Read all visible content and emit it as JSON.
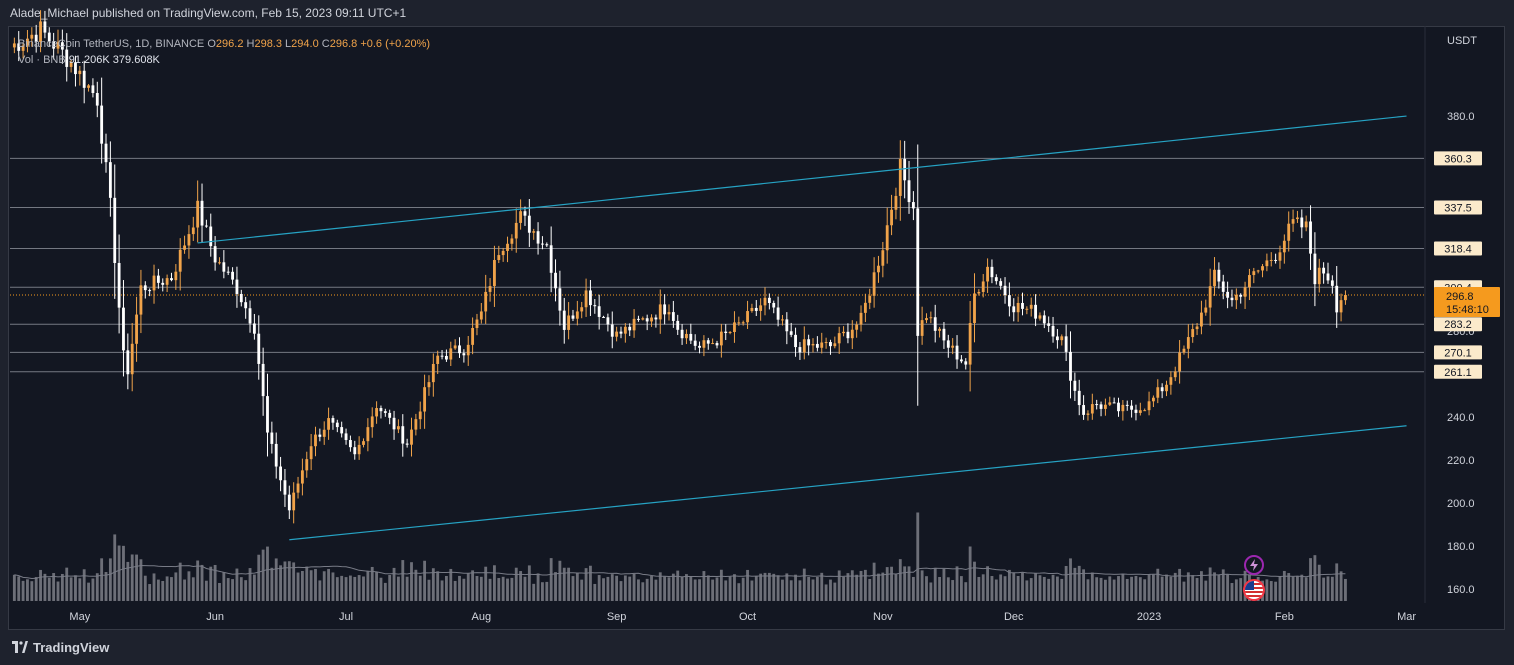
{
  "header": {
    "published_by": "Alade_Michael published on TradingView.com, Feb 15, 2023 09:11 UTC+1"
  },
  "legend": {
    "symbol": "BinanceCoin",
    "quote": "TetherUS, 1D, BINANCE",
    "open_label": "O",
    "open": "296.2",
    "high_label": "H",
    "high": "298.3",
    "low_label": "L",
    "low": "294.0",
    "close_label": "C",
    "close": "296.8",
    "change": "+0.6 (+0.20%)",
    "vol_label": "Vol · BNB",
    "vol": "91.206K",
    "vol_ma": "379.608K"
  },
  "footer": {
    "brand": "TradingView",
    "logo": "tradingview-logo"
  },
  "icons": {
    "badge_top": "lightning-icon",
    "badge_bottom": "us-flag-icon"
  },
  "chart_data": {
    "type": "candlestick",
    "y_axis_currency": "USDT",
    "ylim": [
      155,
      420
    ],
    "y_ticks": [
      160.0,
      180.0,
      200.0,
      220.0,
      240.0,
      280.0,
      380.0
    ],
    "x_labels": [
      "May",
      "Jun",
      "Jul",
      "Aug",
      "Sep",
      "Oct",
      "Nov",
      "Dec",
      "2023",
      "Feb",
      "Mar"
    ],
    "x_dates": [
      "2022-05-01",
      "2022-06-01",
      "2022-07-01",
      "2022-08-01",
      "2022-09-01",
      "2022-10-01",
      "2022-11-01",
      "2022-12-01",
      "2023-01-01",
      "2023-02-01",
      "2023-03-01"
    ],
    "xlim": [
      "2022-04-15",
      "2023-03-05"
    ],
    "horizontal_levels": [
      360.3,
      337.5,
      318.4,
      300.4,
      283.2,
      270.1,
      261.1
    ],
    "last_price": 296.8,
    "countdown": "15:48:10",
    "channel_upper": {
      "start": [
        "2022-05-28",
        321
      ],
      "end": [
        "2023-03-01",
        380
      ]
    },
    "channel_lower": {
      "start": [
        "2022-06-18",
        183
      ],
      "end": [
        "2023-03-01",
        236
      ]
    },
    "colors": {
      "up": "#f0a34a",
      "down": "#ffffff",
      "channel": "#26a3c4",
      "level_line": "#868993",
      "price_tag": "#f59a1e",
      "label_bg": "#fbeacb",
      "volume": "#8c8e96",
      "volume_ma": "#787b86"
    },
    "anchors": [
      [
        "2022-04-15",
        412
      ],
      [
        "2022-04-22",
        420
      ],
      [
        "2022-04-29",
        405
      ],
      [
        "2022-05-05",
        388
      ],
      [
        "2022-05-08",
        338
      ],
      [
        "2022-05-11",
        268
      ],
      [
        "2022-05-12",
        262
      ],
      [
        "2022-05-15",
        300
      ],
      [
        "2022-05-22",
        305
      ],
      [
        "2022-05-28",
        337
      ],
      [
        "2022-06-01",
        314
      ],
      [
        "2022-06-06",
        300
      ],
      [
        "2022-06-10",
        282
      ],
      [
        "2022-06-13",
        232
      ],
      [
        "2022-06-15",
        218
      ],
      [
        "2022-06-18",
        197
      ],
      [
        "2022-06-23",
        228
      ],
      [
        "2022-06-27",
        238
      ],
      [
        "2022-07-03",
        222
      ],
      [
        "2022-07-08",
        246
      ],
      [
        "2022-07-15",
        228
      ],
      [
        "2022-07-22",
        268
      ],
      [
        "2022-07-28",
        272
      ],
      [
        "2022-08-01",
        288
      ],
      [
        "2022-08-05",
        318
      ],
      [
        "2022-08-10",
        333
      ],
      [
        "2022-08-16",
        320
      ],
      [
        "2022-08-20",
        282
      ],
      [
        "2022-08-25",
        298
      ],
      [
        "2022-09-01",
        278
      ],
      [
        "2022-09-07",
        285
      ],
      [
        "2022-09-13",
        292
      ],
      [
        "2022-09-15",
        282
      ],
      [
        "2022-09-20",
        272
      ],
      [
        "2022-09-26",
        278
      ],
      [
        "2022-10-01",
        286
      ],
      [
        "2022-10-05",
        294
      ],
      [
        "2022-10-12",
        273
      ],
      [
        "2022-10-20",
        273
      ],
      [
        "2022-10-27",
        285
      ],
      [
        "2022-11-01",
        320
      ],
      [
        "2022-11-05",
        356
      ],
      [
        "2022-11-08",
        338
      ],
      [
        "2022-11-09",
        280
      ],
      [
        "2022-11-11",
        288
      ],
      [
        "2022-11-15",
        275
      ],
      [
        "2022-11-20",
        265
      ],
      [
        "2022-11-22",
        297
      ],
      [
        "2022-11-25",
        310
      ],
      [
        "2022-12-01",
        292
      ],
      [
        "2022-12-07",
        288
      ],
      [
        "2022-12-12",
        276
      ],
      [
        "2022-12-15",
        252
      ],
      [
        "2022-12-17",
        242
      ],
      [
        "2022-12-20",
        246
      ],
      [
        "2022-12-26",
        243
      ],
      [
        "2023-01-01",
        246
      ],
      [
        "2023-01-05",
        256
      ],
      [
        "2023-01-09",
        271
      ],
      [
        "2023-01-13",
        288
      ],
      [
        "2023-01-16",
        305
      ],
      [
        "2023-01-20",
        294
      ],
      [
        "2023-01-25",
        306
      ],
      [
        "2023-01-30",
        316
      ],
      [
        "2023-02-03",
        330
      ],
      [
        "2023-02-06",
        328
      ],
      [
        "2023-02-08",
        305
      ],
      [
        "2023-02-10",
        308
      ],
      [
        "2023-02-12",
        303
      ],
      [
        "2023-02-13",
        292
      ],
      [
        "2023-02-15",
        296.8
      ]
    ]
  }
}
